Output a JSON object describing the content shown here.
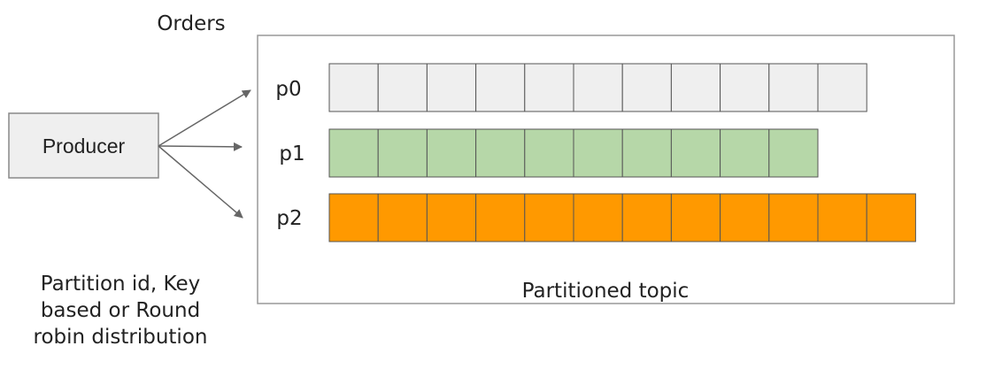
{
  "title": "Orders",
  "producer": {
    "label": "Producer"
  },
  "partitions": [
    {
      "label": "p0"
    },
    {
      "label": "p1"
    },
    {
      "label": "p2"
    }
  ],
  "topic": {
    "label": "Partitioned topic"
  },
  "note": {
    "lines": [
      "Partition id, Key",
      "based or Round",
      "robin distribution"
    ]
  }
}
